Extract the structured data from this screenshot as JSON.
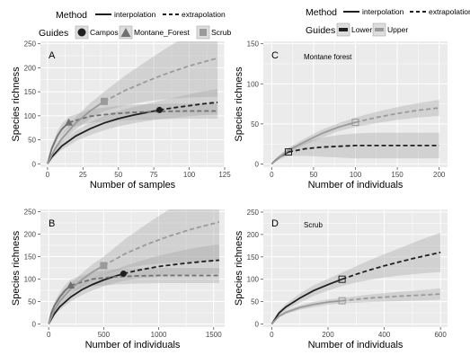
{
  "legends": {
    "left": {
      "method_title": "Method",
      "method_items": [
        "interpolation",
        "extrapolation"
      ],
      "guides_title": "Guides",
      "guide_items": [
        "Campos",
        "Montane_Forest",
        "Scrub"
      ]
    },
    "right": {
      "method_title": "Method",
      "method_items": [
        "interpolation",
        "extrapolation"
      ],
      "guides_title": "Guides",
      "guide_items": [
        "Lower",
        "Upper"
      ]
    }
  },
  "colors": {
    "panel_bg": "#ebebeb",
    "grid": "#ffffff",
    "campos": "#1f1f1f",
    "montane": "#707070",
    "scrub": "#9a9a9a",
    "lower": "#1f1f1f",
    "upper": "#9a9a9a",
    "band": "#a0a0a0"
  },
  "chart_data": [
    {
      "type": "line",
      "panel_label": "A",
      "annotation": "",
      "xlabel": "Number of samples",
      "ylabel": "Species richness",
      "xlim": [
        -5,
        125
      ],
      "ylim": [
        -7,
        255
      ],
      "xticks": [
        0,
        25,
        50,
        75,
        100,
        125
      ],
      "yticks": [
        0,
        50,
        100,
        150,
        200,
        250
      ],
      "grid": true,
      "series": [
        {
          "name": "Campos",
          "marker": "circle",
          "color_key": "campos",
          "interpolation": {
            "x": [
              0,
              3,
              10,
              20,
              30,
              40,
              50,
              60,
              70,
              79
            ],
            "y": [
              0,
              14,
              37,
              58,
              73,
              85,
              94,
              101,
              107,
              112
            ]
          },
          "extrapolation": {
            "x": [
              79,
              90,
              100,
              110,
              120
            ],
            "y": [
              112,
              117,
              121,
              125,
              128
            ]
          },
          "ci_lower": [
            0,
            10,
            29,
            47,
            60,
            70,
            78,
            84,
            89,
            93,
            96,
            99,
            101,
            103
          ],
          "ci_upper": [
            0,
            18,
            45,
            69,
            86,
            100,
            110,
            118,
            125,
            131,
            138,
            145,
            151,
            156
          ],
          "ci_x": [
            0,
            3,
            10,
            20,
            30,
            40,
            50,
            60,
            70,
            79,
            90,
            100,
            110,
            120
          ],
          "observed": {
            "x": 79,
            "y": 112
          }
        },
        {
          "name": "Montane_Forest",
          "marker": "triangle",
          "color_key": "montane",
          "interpolation": {
            "x": [
              0,
              3,
              7,
              10,
              15
            ],
            "y": [
              0,
              32,
              58,
              72,
              86
            ]
          },
          "extrapolation": {
            "x": [
              15,
              30,
              45,
              60,
              80,
              100,
              120
            ],
            "y": [
              86,
              99,
              104,
              107,
              109,
              110,
              110
            ]
          },
          "ci_lower": [
            0,
            26,
            48,
            61,
            74,
            85,
            89,
            91,
            93,
            94,
            94
          ],
          "ci_upper": [
            0,
            38,
            68,
            83,
            98,
            113,
            119,
            123,
            125,
            126,
            126
          ],
          "ci_x": [
            0,
            3,
            7,
            10,
            15,
            30,
            45,
            60,
            80,
            100,
            120
          ],
          "observed": {
            "x": 15,
            "y": 86
          }
        },
        {
          "name": "Scrub",
          "marker": "square",
          "color_key": "scrub",
          "interpolation": {
            "x": [
              0,
              5,
              10,
              20,
              30,
              40
            ],
            "y": [
              0,
              30,
              52,
              85,
              110,
              130
            ]
          },
          "extrapolation": {
            "x": [
              40,
              55,
              70,
              85,
              100,
              120
            ],
            "y": [
              130,
              153,
              172,
              189,
              204,
              220
            ]
          },
          "ci_lower": [
            0,
            24,
            43,
            72,
            94,
            110,
            122,
            130,
            135,
            138,
            140
          ],
          "ci_upper": [
            0,
            36,
            61,
            98,
            126,
            150,
            184,
            214,
            243,
            270,
            300
          ],
          "ci_x": [
            0,
            5,
            10,
            20,
            30,
            40,
            55,
            70,
            85,
            100,
            120
          ],
          "observed": {
            "x": 40,
            "y": 130
          }
        }
      ]
    },
    {
      "type": "line",
      "panel_label": "B",
      "annotation": "",
      "xlabel": "Number of individuals",
      "ylabel": "Species richness",
      "xlim": [
        -75,
        1600
      ],
      "ylim": [
        -7,
        255
      ],
      "xticks": [
        0,
        500,
        1000,
        1500
      ],
      "yticks": [
        0,
        50,
        100,
        150,
        200,
        250
      ],
      "grid": true,
      "series": [
        {
          "name": "Campos",
          "marker": "circle",
          "color_key": "campos",
          "interpolation": {
            "x": [
              0,
              50,
              100,
              200,
              300,
              400,
              500,
              600,
              680
            ],
            "y": [
              0,
              22,
              38,
              60,
              76,
              88,
              98,
              106,
              112
            ]
          },
          "extrapolation": {
            "x": [
              680,
              800,
              1000,
              1200,
              1400,
              1550
            ],
            "y": [
              112,
              119,
              128,
              134,
              139,
              142
            ]
          },
          "ci_lower": [
            0,
            18,
            31,
            50,
            64,
            75,
            84,
            91,
            96,
            101,
            106,
            109,
            111,
            112
          ],
          "ci_upper": [
            0,
            26,
            45,
            70,
            88,
            101,
            112,
            121,
            128,
            138,
            152,
            163,
            172,
            178
          ],
          "ci_x": [
            0,
            50,
            100,
            200,
            300,
            400,
            500,
            600,
            680,
            800,
            1000,
            1200,
            1400,
            1550
          ],
          "observed": {
            "x": 680,
            "y": 112
          }
        },
        {
          "name": "Montane_Forest",
          "marker": "triangle",
          "color_key": "montane",
          "interpolation": {
            "x": [
              0,
              25,
              50,
              100,
              150,
              200
            ],
            "y": [
              0,
              25,
              40,
              60,
              75,
              86
            ]
          },
          "extrapolation": {
            "x": [
              200,
              400,
              600,
              800,
              1000,
              1200,
              1550
            ],
            "y": [
              86,
              100,
              105,
              107,
              108,
              108,
              108
            ]
          },
          "ci_lower": [
            0,
            20,
            33,
            50,
            63,
            73,
            84,
            88,
            90,
            91,
            91,
            91
          ],
          "ci_upper": [
            0,
            30,
            47,
            70,
            87,
            99,
            116,
            122,
            124,
            125,
            125,
            125
          ],
          "ci_x": [
            0,
            25,
            50,
            100,
            150,
            200,
            400,
            600,
            800,
            1000,
            1200,
            1550
          ],
          "observed": {
            "x": 200,
            "y": 86
          }
        },
        {
          "name": "Scrub",
          "marker": "square",
          "color_key": "scrub",
          "interpolation": {
            "x": [
              0,
              50,
              100,
              200,
              300,
              400,
              500
            ],
            "y": [
              0,
              30,
              50,
              78,
              98,
              116,
              130
            ]
          },
          "extrapolation": {
            "x": [
              500,
              700,
              900,
              1100,
              1300,
              1550
            ],
            "y": [
              130,
              157,
              178,
              196,
              211,
              227
            ]
          },
          "ci_lower": [
            0,
            24,
            41,
            65,
            83,
            99,
            110,
            124,
            132,
            136,
            138,
            140
          ],
          "ci_upper": [
            0,
            36,
            59,
            91,
            113,
            133,
            150,
            190,
            224,
            256,
            284,
            314
          ],
          "ci_x": [
            0,
            50,
            100,
            200,
            300,
            400,
            500,
            700,
            900,
            1100,
            1300,
            1550
          ],
          "observed": {
            "x": 500,
            "y": 130
          }
        }
      ]
    },
    {
      "type": "line",
      "panel_label": "C",
      "annotation": "Montane forest",
      "xlabel": "Number of individuals",
      "ylabel": "Species richness",
      "xlim": [
        -10,
        210
      ],
      "ylim": [
        -4,
        153
      ],
      "xticks": [
        0,
        50,
        100,
        150,
        200
      ],
      "yticks": [
        0,
        50,
        100,
        150
      ],
      "grid": true,
      "series": [
        {
          "name": "Lower",
          "marker": "square",
          "color_key": "lower",
          "interpolation": {
            "x": [
              0,
              5,
              10,
              15,
              20
            ],
            "y": [
              0,
              5,
              9,
              12,
              15
            ]
          },
          "extrapolation": {
            "x": [
              20,
              40,
              60,
              80,
              100,
              120,
              140,
              160,
              180,
              200
            ],
            "y": [
              15,
              19,
              21,
              22,
              23,
              23,
              23,
              23,
              23,
              23
            ]
          },
          "ci_lower": [
            0,
            3,
            6,
            8,
            10,
            10,
            9,
            8,
            7,
            7,
            7,
            7,
            7,
            7
          ],
          "ci_upper": [
            0,
            7,
            12,
            16,
            20,
            28,
            33,
            36,
            38,
            39,
            39,
            39,
            39,
            39
          ],
          "ci_x": [
            0,
            5,
            10,
            15,
            20,
            40,
            60,
            80,
            100,
            120,
            140,
            160,
            180,
            200
          ],
          "observed": {
            "x": 20,
            "y": 15
          }
        },
        {
          "name": "Upper",
          "marker": "square",
          "color_key": "upper",
          "interpolation": {
            "x": [
              0,
              10,
              20,
              40,
              60,
              80,
              100
            ],
            "y": [
              0,
              9,
              17,
              28,
              38,
              46,
              52
            ]
          },
          "extrapolation": {
            "x": [
              100,
              125,
              150,
              175,
              200
            ],
            "y": [
              52,
              58,
              63,
              67,
              70
            ]
          },
          "ci_lower": [
            0,
            7,
            14,
            24,
            33,
            41,
            46,
            51,
            55,
            58,
            60
          ],
          "ci_upper": [
            0,
            11,
            20,
            32,
            43,
            51,
            58,
            65,
            71,
            76,
            80
          ],
          "ci_x": [
            0,
            10,
            20,
            40,
            60,
            80,
            100,
            125,
            150,
            175,
            200
          ],
          "observed": {
            "x": 100,
            "y": 52
          }
        }
      ]
    },
    {
      "type": "line",
      "panel_label": "D",
      "annotation": "Scrub",
      "xlabel": "Number of individuals",
      "ylabel": "Species richness",
      "xlim": [
        -30,
        625
      ],
      "ylim": [
        -7,
        256
      ],
      "xticks": [
        0,
        200,
        400,
        600
      ],
      "yticks": [
        0,
        50,
        100,
        150,
        200,
        250
      ],
      "grid": true,
      "series": [
        {
          "name": "Lower",
          "marker": "square",
          "color_key": "lower",
          "interpolation": {
            "x": [
              0,
              25,
              50,
              100,
              150,
              200,
              250
            ],
            "y": [
              0,
              24,
              38,
              58,
              75,
              88,
              100
            ]
          },
          "extrapolation": {
            "x": [
              250,
              300,
              350,
              400,
              450,
              500,
              550,
              600
            ],
            "y": [
              100,
              111,
              121,
              130,
              138,
              146,
              153,
              160
            ]
          },
          "ci_lower": [
            0,
            19,
            31,
            48,
            63,
            75,
            85,
            93,
            99,
            104,
            108,
            111,
            114,
            116
          ],
          "ci_upper": [
            0,
            29,
            45,
            68,
            87,
            101,
            115,
            129,
            143,
            156,
            168,
            181,
            193,
            204
          ],
          "ci_x": [
            0,
            25,
            50,
            100,
            150,
            200,
            250,
            300,
            350,
            400,
            450,
            500,
            550,
            600
          ],
          "observed": {
            "x": 250,
            "y": 100
          }
        },
        {
          "name": "Upper",
          "marker": "square",
          "color_key": "upper",
          "interpolation": {
            "x": [
              0,
              25,
              50,
              100,
              150,
              200,
              250
            ],
            "y": [
              0,
              17,
              26,
              37,
              44,
              49,
              52
            ]
          },
          "extrapolation": {
            "x": [
              250,
              350,
              450,
              550,
              600
            ],
            "y": [
              52,
              58,
              62,
              65,
              67
            ]
          },
          "ci_lower": [
            0,
            14,
            22,
            32,
            38,
            43,
            46,
            49,
            51,
            53,
            54
          ],
          "ci_upper": [
            0,
            20,
            30,
            42,
            50,
            55,
            58,
            66,
            72,
            77,
            80
          ],
          "ci_x": [
            0,
            25,
            50,
            100,
            150,
            200,
            250,
            350,
            450,
            550,
            600
          ],
          "observed": {
            "x": 250,
            "y": 52
          }
        }
      ]
    }
  ]
}
